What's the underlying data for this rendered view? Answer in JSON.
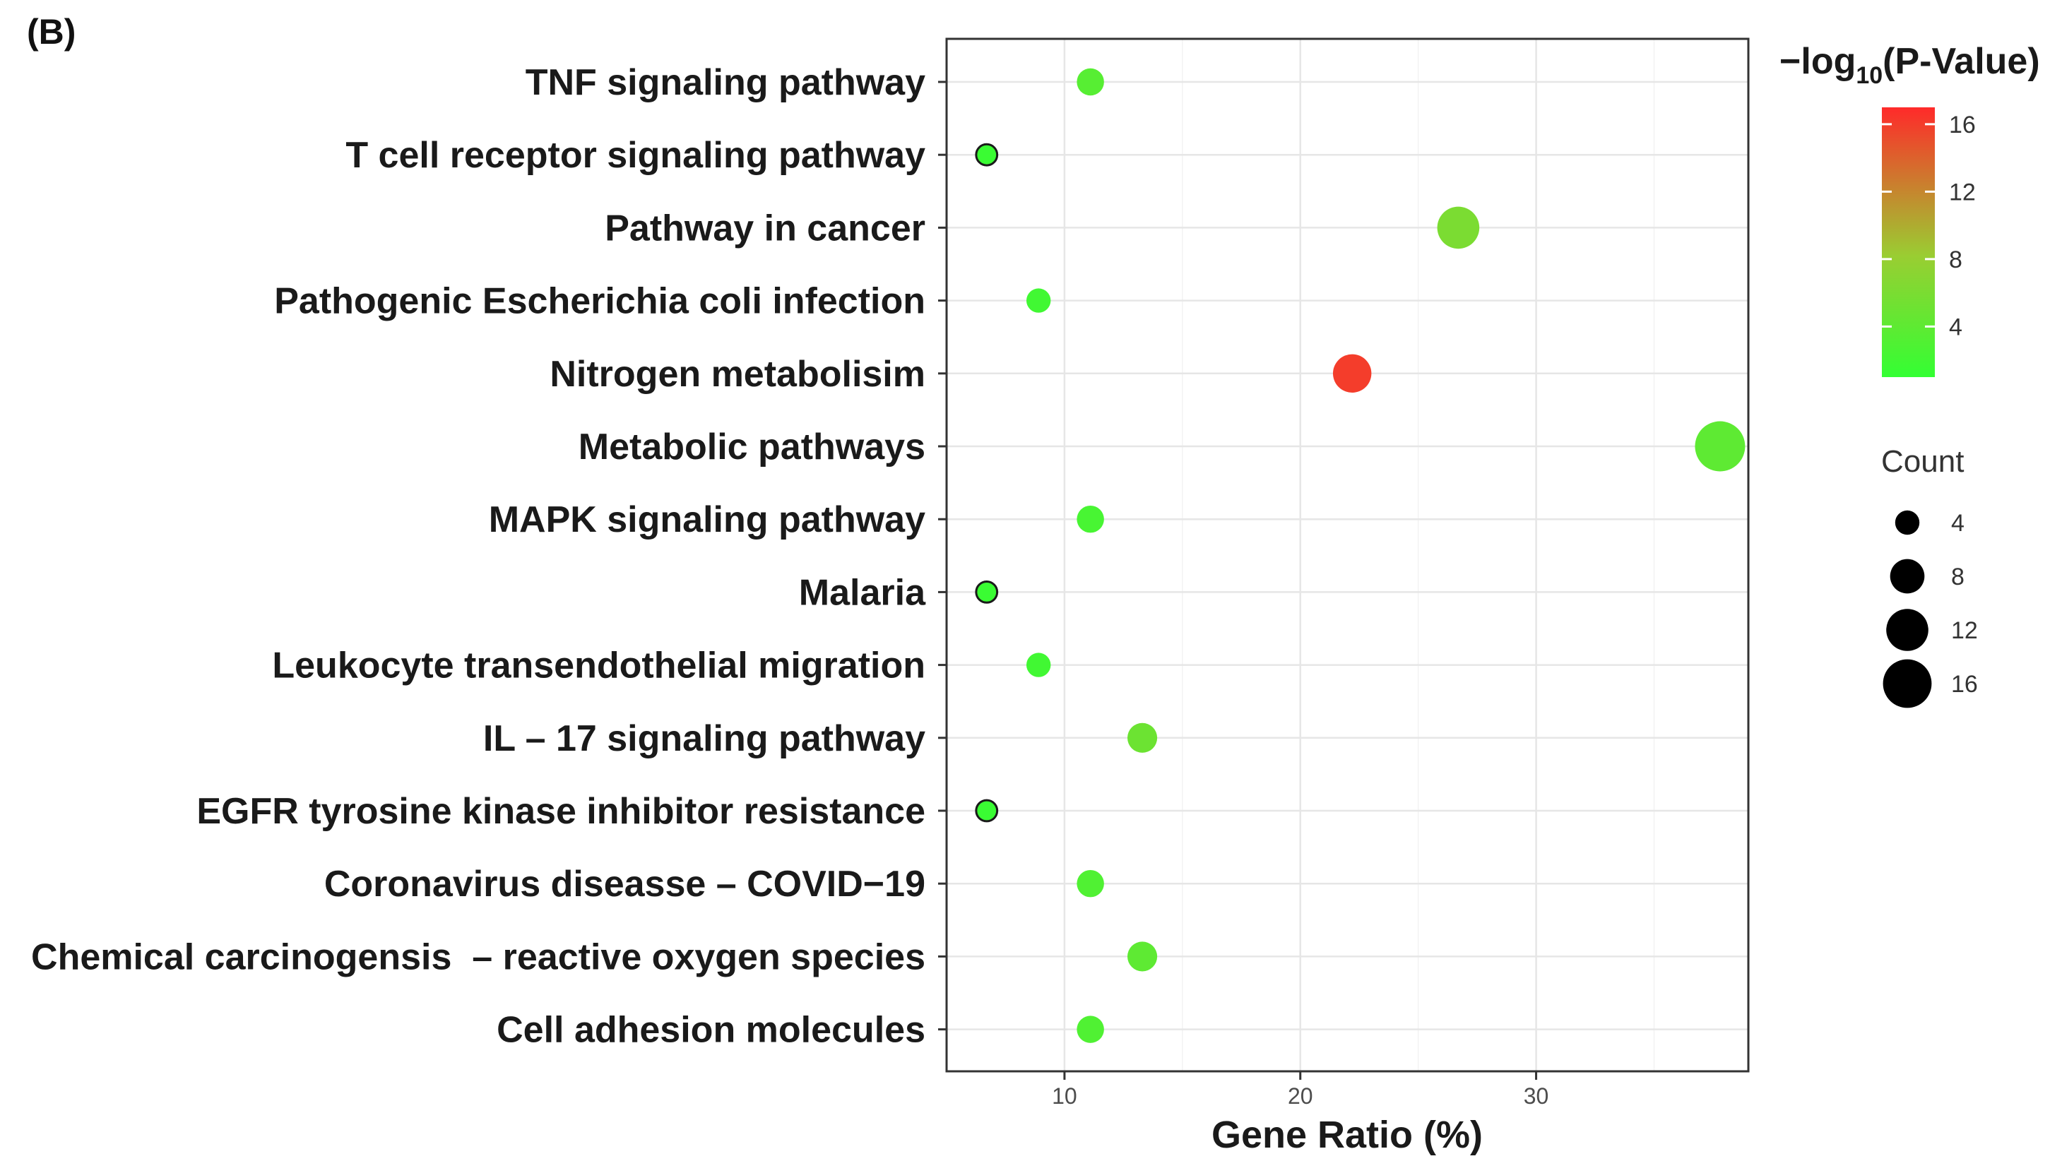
{
  "panel_label": "(B)",
  "chart_data": {
    "type": "scatter",
    "title": "",
    "xlabel": "Gene Ratio (%)",
    "ylabel": "",
    "xlim": [
      5,
      39
    ],
    "xticks": [
      10,
      20,
      30
    ],
    "grid": true,
    "color_legend": {
      "title_prefix": "−log",
      "title_subscript": "10",
      "title_suffix": "(P-Value)",
      "range": [
        1,
        17
      ],
      "ticks": [
        4,
        8,
        12,
        16
      ],
      "low_color": "#33ff33",
      "high_color": "#ff2a2a",
      "mid_color": "#9acd32"
    },
    "size_legend": {
      "title": "Count",
      "values": [
        4,
        8,
        12,
        16
      ]
    },
    "points": [
      {
        "category": "TNF signaling pathway",
        "gene_ratio": 11.1,
        "log_p": 3.5,
        "count": 5
      },
      {
        "category": "T cell receptor signaling pathway",
        "gene_ratio": 6.7,
        "log_p": 1.5,
        "count": 3
      },
      {
        "category": "Pathway in cancer",
        "gene_ratio": 26.7,
        "log_p": 6.0,
        "count": 12
      },
      {
        "category": "Pathogenic Escherichia coli infection",
        "gene_ratio": 8.9,
        "log_p": 2.0,
        "count": 4
      },
      {
        "category": "Nitrogen metabolisim",
        "gene_ratio": 22.2,
        "log_p": 16.0,
        "count": 10
      },
      {
        "category": "Metabolic pathways",
        "gene_ratio": 37.8,
        "log_p": 4.0,
        "count": 17
      },
      {
        "category": "MAPK signaling pathway",
        "gene_ratio": 11.1,
        "log_p": 2.5,
        "count": 5
      },
      {
        "category": "Malaria",
        "gene_ratio": 6.7,
        "log_p": 1.5,
        "count": 3
      },
      {
        "category": "Leukocyte transendothelial migration",
        "gene_ratio": 8.9,
        "log_p": 2.0,
        "count": 4
      },
      {
        "category": "IL – 17 signaling pathway",
        "gene_ratio": 13.3,
        "log_p": 5.0,
        "count": 6
      },
      {
        "category": "EGFR tyrosine kinase inhibitor resistance",
        "gene_ratio": 6.7,
        "log_p": 1.5,
        "count": 3
      },
      {
        "category": "Coronavirus diseasse – COVID−19",
        "gene_ratio": 11.1,
        "log_p": 3.0,
        "count": 5
      },
      {
        "category": "Chemical carcinogensis  – reactive oxygen species",
        "gene_ratio": 13.3,
        "log_p": 4.0,
        "count": 6
      },
      {
        "category": "Cell adhesion molecules",
        "gene_ratio": 11.1,
        "log_p": 3.0,
        "count": 5
      }
    ]
  }
}
